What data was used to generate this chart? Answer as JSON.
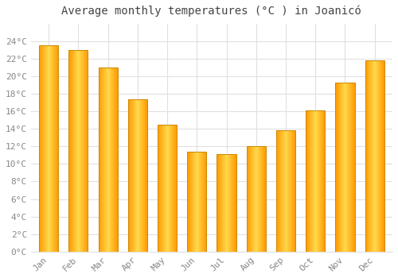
{
  "title": "Average monthly temperatures (°C ) in Joanicó",
  "months": [
    "Jan",
    "Feb",
    "Mar",
    "Apr",
    "May",
    "Jun",
    "Jul",
    "Aug",
    "Sep",
    "Oct",
    "Nov",
    "Dec"
  ],
  "values": [
    23.5,
    23.0,
    21.0,
    17.4,
    14.5,
    11.4,
    11.1,
    12.0,
    13.8,
    16.1,
    19.3,
    21.8
  ],
  "bar_color_center": "#FFD966",
  "bar_color_edge": "#FFA500",
  "bar_outline_color": "#CC8800",
  "background_color": "#FFFFFF",
  "grid_color": "#E0E0E0",
  "ylim": [
    0,
    26
  ],
  "yticks": [
    0,
    2,
    4,
    6,
    8,
    10,
    12,
    14,
    16,
    18,
    20,
    22,
    24
  ],
  "title_fontsize": 10,
  "tick_fontsize": 8,
  "tick_color": "#888888",
  "title_color": "#444444",
  "bar_width": 0.65
}
